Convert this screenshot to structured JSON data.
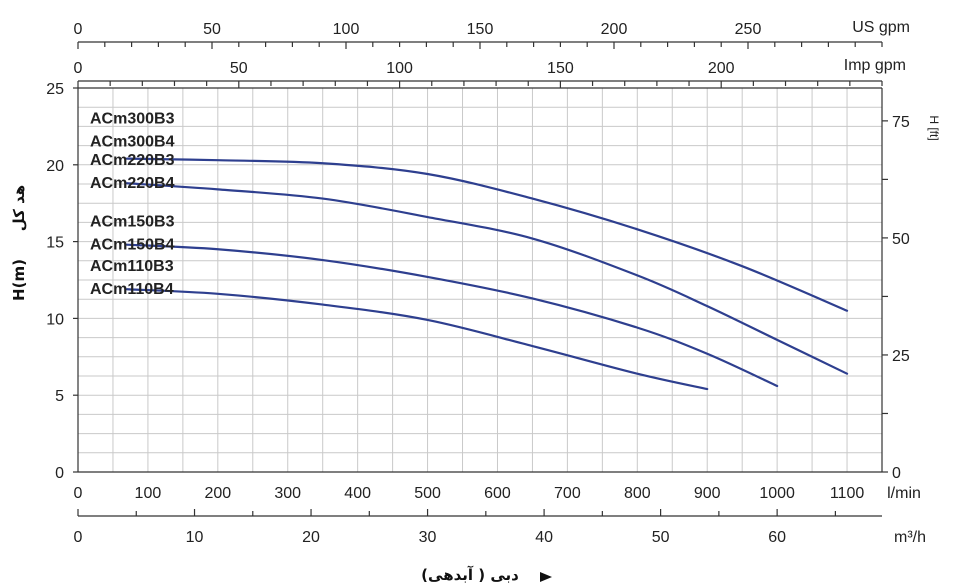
{
  "chart_data": {
    "type": "line",
    "color_curve": "#2e3f8f",
    "grid": true,
    "x_axis": {
      "label": "l/min",
      "xlim": [
        0,
        1150
      ],
      "ticks": [
        0,
        100,
        200,
        300,
        400,
        500,
        600,
        700,
        800,
        900,
        1000,
        1100
      ]
    },
    "y_axis_left": {
      "label": "H(m)",
      "ylim": [
        0,
        25
      ],
      "ticks": [
        0,
        5,
        10,
        15,
        20,
        25
      ]
    },
    "y_axis_right": {
      "label": "H [ft]",
      "ticks": [
        0,
        25,
        50,
        75
      ]
    },
    "top_axes": [
      {
        "unit": "US gpm",
        "max": 300,
        "ticks": [
          "0",
          "50",
          "100",
          "150",
          "200",
          "250"
        ],
        "values": [
          0,
          50,
          100,
          150,
          200,
          250
        ]
      },
      {
        "unit": "Imp gpm",
        "max": 250,
        "ticks": [
          "0",
          "50",
          "100",
          "150",
          "200"
        ],
        "values": [
          0,
          50,
          100,
          150,
          200
        ]
      }
    ],
    "bottom_axis": {
      "unit": "m³/h",
      "max": 69,
      "ticks": [
        "0",
        "10",
        "20",
        "30",
        "40",
        "50",
        "60"
      ],
      "values": [
        0,
        10,
        20,
        30,
        40,
        50,
        60
      ]
    },
    "flow_title": "دبی ( آبدهی)",
    "head_title": "هد کل",
    "series": [
      {
        "name": "ACm300B3\nACm300B4",
        "labels": [
          "ACm300B3",
          "ACm300B4"
        ],
        "x": [
          70,
          200,
          350,
          500,
          650,
          800,
          950,
          1100
        ],
        "y": [
          20.4,
          20.3,
          20.1,
          19.4,
          17.8,
          15.8,
          13.4,
          10.5
        ]
      },
      {
        "name": "ACm220B3\nACm220B4",
        "labels": [
          "ACm220B3",
          "ACm220B4"
        ],
        "x": [
          70,
          200,
          350,
          500,
          650,
          800,
          900,
          1000,
          1100
        ],
        "y": [
          18.8,
          18.4,
          17.8,
          16.6,
          15.2,
          12.8,
          10.8,
          8.6,
          6.4
        ]
      },
      {
        "name": "ACm150B3\nACm150B4",
        "labels": [
          "ACm150B3",
          "ACm150B4"
        ],
        "x": [
          70,
          200,
          350,
          500,
          650,
          800,
          900,
          1000
        ],
        "y": [
          14.8,
          14.5,
          13.8,
          12.7,
          11.3,
          9.4,
          7.7,
          5.6
        ]
      },
      {
        "name": "ACm110B3\nACm110B4",
        "labels": [
          "ACm110B3",
          "ACm110B4"
        ],
        "x": [
          70,
          200,
          350,
          500,
          650,
          800,
          900
        ],
        "y": [
          11.9,
          11.6,
          10.9,
          9.9,
          8.2,
          6.4,
          5.4
        ]
      }
    ]
  }
}
